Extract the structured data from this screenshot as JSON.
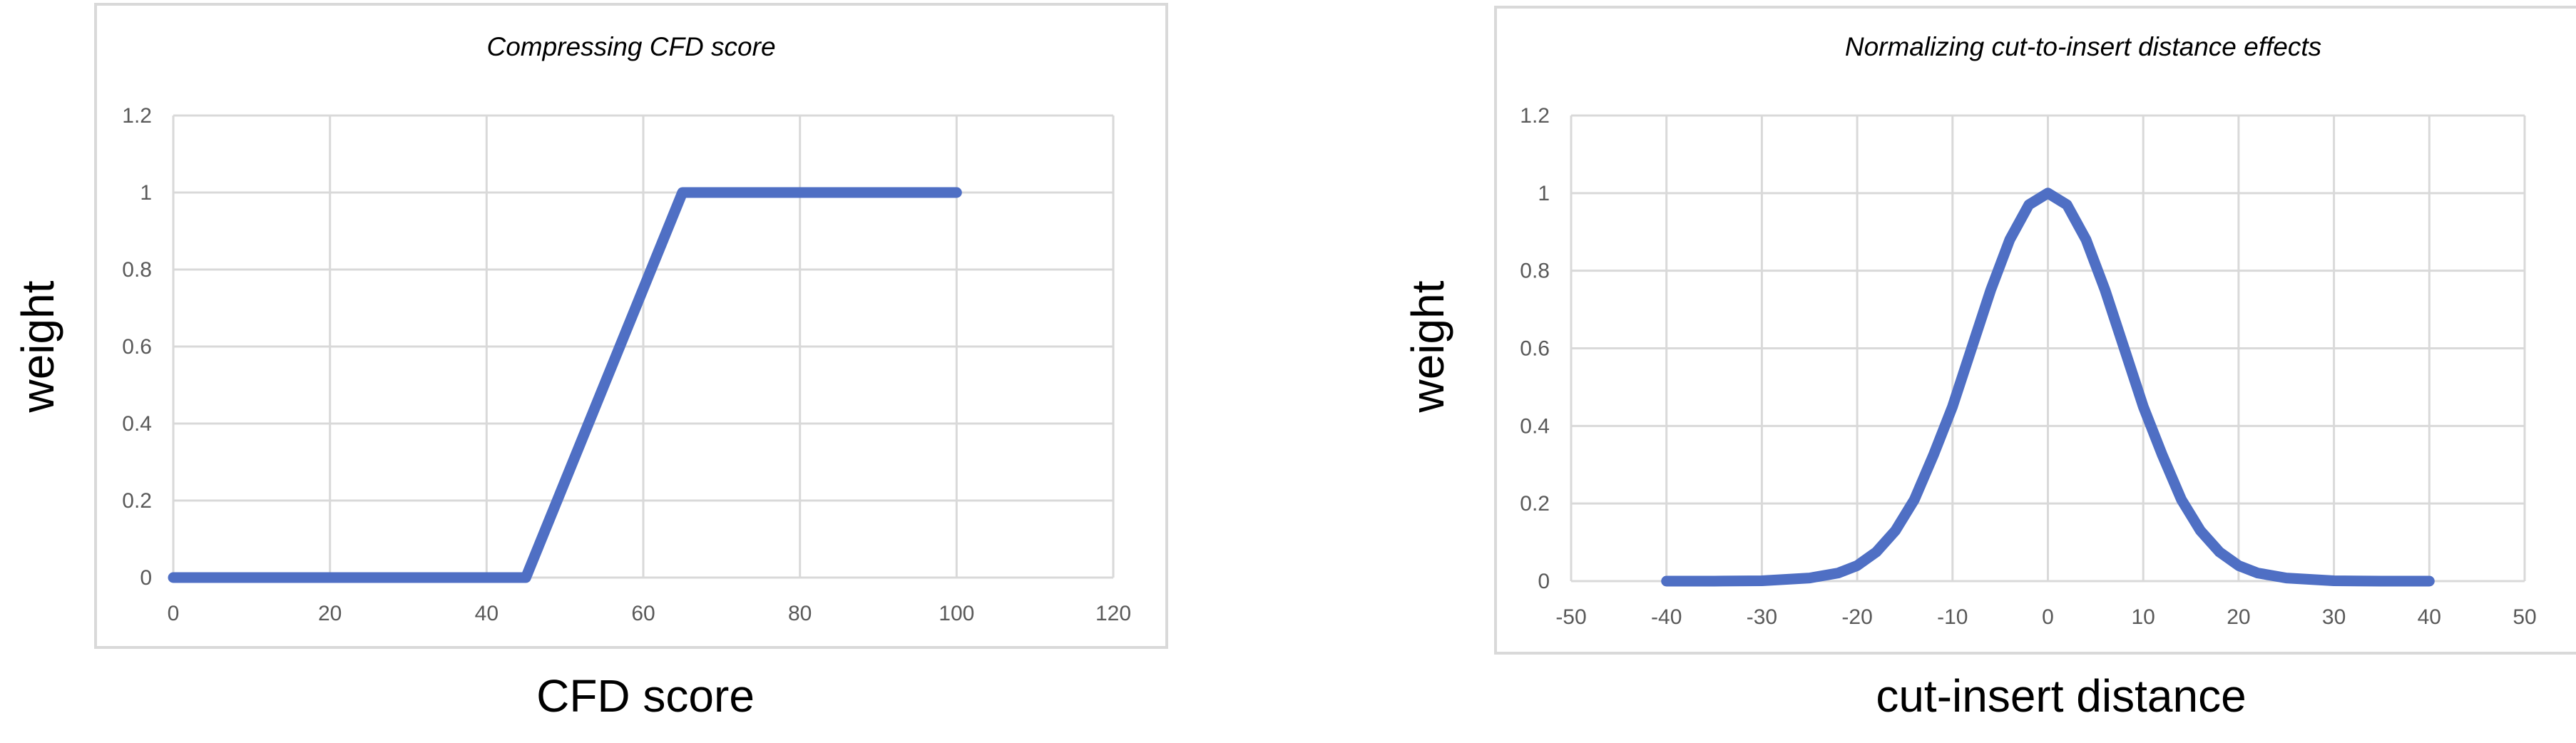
{
  "colors": {
    "series": "#4f6fc4",
    "grid": "#d9d9d9",
    "frame": "#d9d9d9",
    "tick_text": "#595959"
  },
  "chart_data": [
    {
      "type": "line",
      "title": "Compressing CFD score",
      "xlabel": "CFD score",
      "ylabel": "weight",
      "xlim": [
        0,
        120
      ],
      "ylim": [
        0,
        1.2
      ],
      "xticks": [
        "0",
        "20",
        "40",
        "60",
        "80",
        "100",
        "120"
      ],
      "yticks": [
        "0",
        "0.2",
        "0.4",
        "0.6",
        "0.8",
        "1",
        "1.2"
      ],
      "grid": true,
      "legend": "none",
      "x": [
        0,
        45,
        65,
        100
      ],
      "y": [
        0,
        0,
        1,
        1
      ]
    },
    {
      "type": "line",
      "title": "Normalizing cut-to-insert distance effects",
      "xlabel": "cut-insert distance",
      "ylabel": "weight",
      "xlim": [
        -50,
        50
      ],
      "ylim": [
        0,
        1.2
      ],
      "xticks": [
        "-50",
        "-40",
        "-30",
        "-20",
        "-10",
        "0",
        "10",
        "20",
        "30",
        "40",
        "50"
      ],
      "yticks": [
        "0",
        "0.2",
        "0.4",
        "0.6",
        "0.8",
        "1",
        "1.2"
      ],
      "grid": true,
      "legend": "none",
      "x": [
        -40,
        -35,
        -30,
        -25,
        -22,
        -20,
        -18,
        -16,
        -14,
        -12,
        -10,
        -8,
        -6,
        -4,
        -2,
        0,
        2,
        4,
        6,
        8,
        10,
        12,
        14,
        16,
        18,
        20,
        22,
        25,
        30,
        35,
        40
      ],
      "y": [
        0,
        0,
        0.001,
        0.008,
        0.021,
        0.04,
        0.075,
        0.13,
        0.21,
        0.325,
        0.45,
        0.6,
        0.75,
        0.88,
        0.97,
        1,
        0.97,
        0.88,
        0.75,
        0.6,
        0.45,
        0.325,
        0.21,
        0.13,
        0.075,
        0.04,
        0.021,
        0.008,
        0.001,
        0,
        0
      ]
    }
  ]
}
